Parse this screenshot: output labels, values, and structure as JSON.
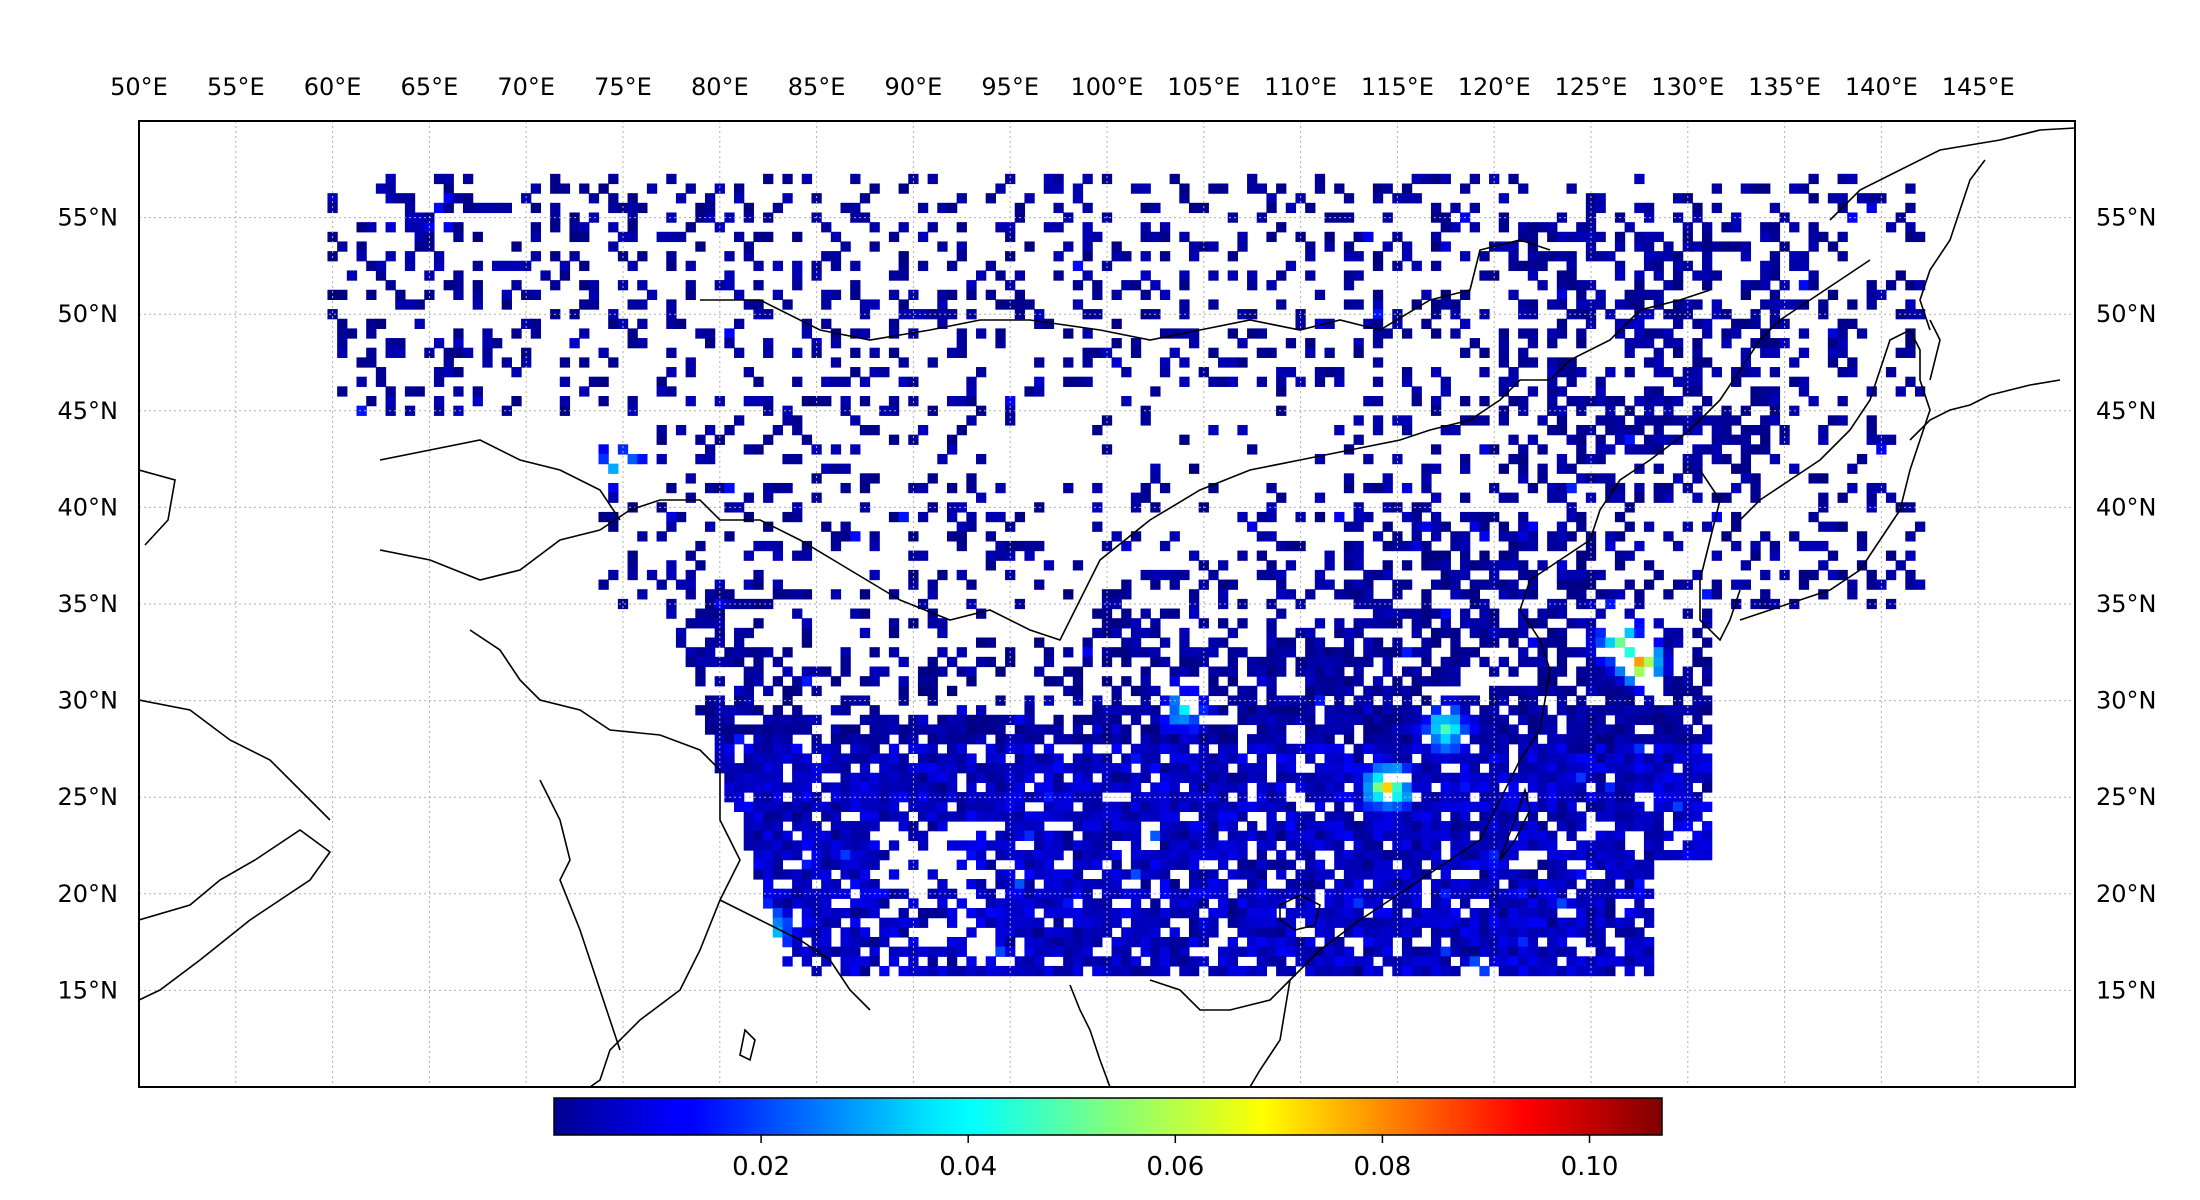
{
  "map": {
    "lon_ticks": [
      "50°E",
      "55°E",
      "60°E",
      "65°E",
      "70°E",
      "75°E",
      "80°E",
      "85°E",
      "90°E",
      "95°E",
      "100°E",
      "105°E",
      "110°E",
      "115°E",
      "120°E",
      "125°E",
      "130°E",
      "135°E",
      "140°E",
      "145°E"
    ],
    "lat_ticks": [
      "55°N",
      "50°N",
      "45°N",
      "40°N",
      "35°N",
      "30°N",
      "25°N",
      "20°N",
      "15°N"
    ],
    "lon_range": [
      50,
      150
    ],
    "lat_range": [
      10,
      60
    ],
    "gridlines": true,
    "colormap": "jet",
    "colorbar": {
      "position": "bottom",
      "vmin": 0.0,
      "vmax": 0.107,
      "tick_values": [
        0.02,
        0.04,
        0.06,
        0.08,
        0.1
      ],
      "tick_labels": [
        "0.02",
        "0.04",
        "0.06",
        "0.08",
        "0.10"
      ]
    },
    "hotspots": [
      {
        "lon": 114.5,
        "lat": 25.5,
        "value": 0.065
      },
      {
        "lon": 127.5,
        "lat": 32.0,
        "value": 0.072
      },
      {
        "lon": 126.5,
        "lat": 33.0,
        "value": 0.05
      },
      {
        "lon": 117.5,
        "lat": 28.5,
        "value": 0.045
      },
      {
        "lon": 82.5,
        "lat": 18.0,
        "value": 0.04
      },
      {
        "lon": 75.0,
        "lat": 42.0,
        "value": 0.035
      },
      {
        "lon": 104.0,
        "lat": 29.5,
        "value": 0.03
      }
    ]
  },
  "colors": {
    "axes_frame": "#000000",
    "grid": "#b0b0b0",
    "coast": "#000000"
  }
}
